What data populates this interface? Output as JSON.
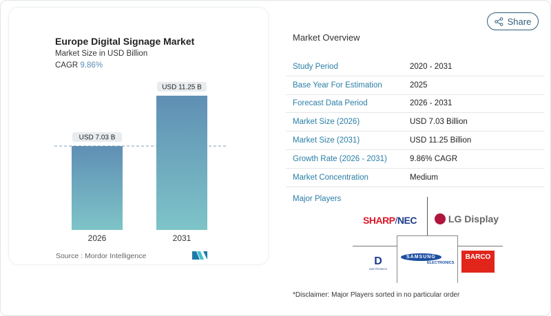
{
  "chart_data": {
    "type": "bar",
    "title": "Europe Digital Signage Market",
    "subtitle": "Market Size in USD Billion",
    "cagr_label": "CAGR",
    "cagr_value": "9.86%",
    "categories": [
      "2026",
      "2031"
    ],
    "values": [
      7.03,
      11.25
    ],
    "data_labels": [
      "USD 7.03 B",
      "USD 11.25 B"
    ],
    "ylim": [
      0,
      11.25
    ],
    "grid": false,
    "reference_line": "dashed at 2026 value",
    "colors": {
      "bar_top": "#5f8fb4",
      "bar_bottom": "#7ec4c8",
      "cagr": "#5b8db8"
    }
  },
  "source": "Source :  Mordor Intelligence",
  "share_label": "Share",
  "overview": {
    "title": "Market Overview",
    "rows": [
      {
        "key": "Study Period",
        "value": "2020 - 2031"
      },
      {
        "key": "Base Year For Estimation",
        "value": "2025"
      },
      {
        "key": "Forecast Data Period",
        "value": "2026 - 2031"
      },
      {
        "key": "Market Size (2026)",
        "value": "USD 7.03 Billion"
      },
      {
        "key": "Market Size (2031)",
        "value": "USD 11.25 Billion"
      },
      {
        "key": "Growth Rate (2026 - 2031)",
        "value": "9.86% CAGR"
      },
      {
        "key": "Market Concentration",
        "value": "Medium"
      }
    ]
  },
  "major_players": {
    "label": "Major Players",
    "logos": [
      "SHARP/NEC",
      "LG Display",
      "DAKTRONICS",
      "SAMSUNG ELECTRONICS",
      "BARCO"
    ]
  },
  "disclaimer": "*Disclaimer: Major Players sorted in no particular order"
}
